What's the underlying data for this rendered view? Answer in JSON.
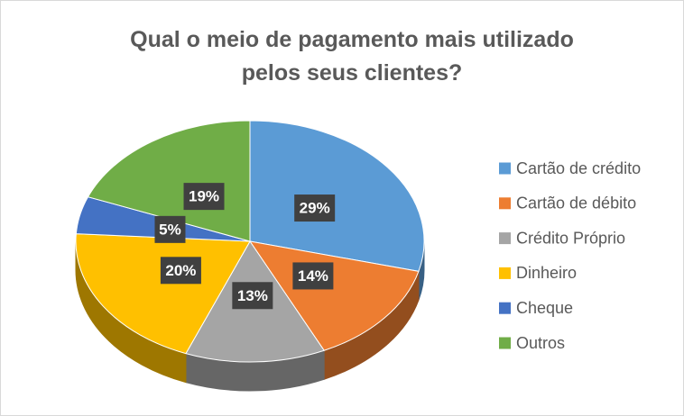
{
  "chart_data": {
    "type": "pie3d",
    "title": "Qual o meio de pagamento mais utilizado pelos seus clientes?",
    "categories": [
      "Cartão de crédito",
      "Cartão de débito",
      "Crédito Próprio",
      "Dinheiro",
      "Cheque",
      "Outros"
    ],
    "values": [
      29,
      14,
      13,
      20,
      5,
      19
    ],
    "value_labels": [
      "29%",
      "14%",
      "13%",
      "20%",
      "5%",
      "19%"
    ],
    "colors": [
      "#5b9bd5",
      "#ed7d31",
      "#a5a5a5",
      "#ffc000",
      "#4472c4",
      "#70ad47"
    ],
    "legend": "right"
  }
}
